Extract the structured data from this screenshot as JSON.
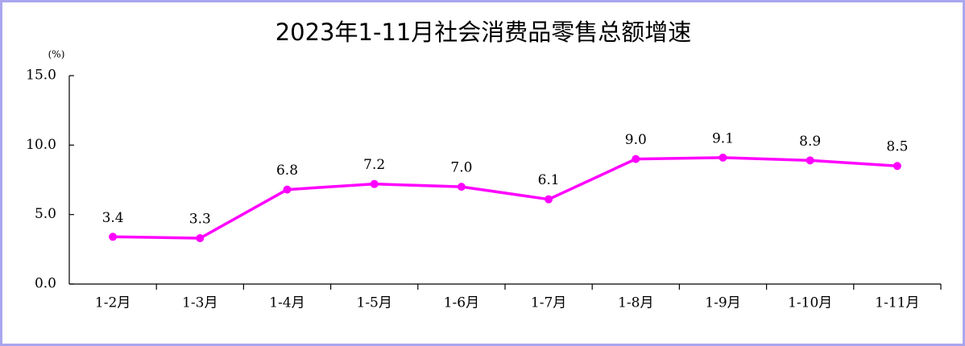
{
  "chart_data": {
    "type": "line",
    "title": "2023年1-11月社会消费品零售总额增速",
    "ylabel": "(%)",
    "categories": [
      "1-2月",
      "1-3月",
      "1-4月",
      "1-5月",
      "1-6月",
      "1-7月",
      "1-8月",
      "1-9月",
      "1-10月",
      "1-11月"
    ],
    "series": [
      {
        "name": "社会消费品零售总额增速",
        "color": "#ff00ff",
        "values": [
          3.4,
          3.3,
          6.8,
          7.2,
          7.0,
          6.1,
          9.0,
          9.1,
          8.9,
          8.5
        ],
        "value_labels": [
          "3.4",
          "3.3",
          "6.8",
          "7.2",
          "7.0",
          "6.1",
          "9.0",
          "9.1",
          "8.9",
          "8.5"
        ]
      }
    ],
    "ylim": [
      0,
      15
    ],
    "yticks": [
      {
        "value": 0,
        "label": "0.0"
      },
      {
        "value": 5,
        "label": "5.0"
      },
      {
        "value": 10,
        "label": "10.0"
      },
      {
        "value": 15,
        "label": "15.0"
      }
    ],
    "grid": false
  }
}
